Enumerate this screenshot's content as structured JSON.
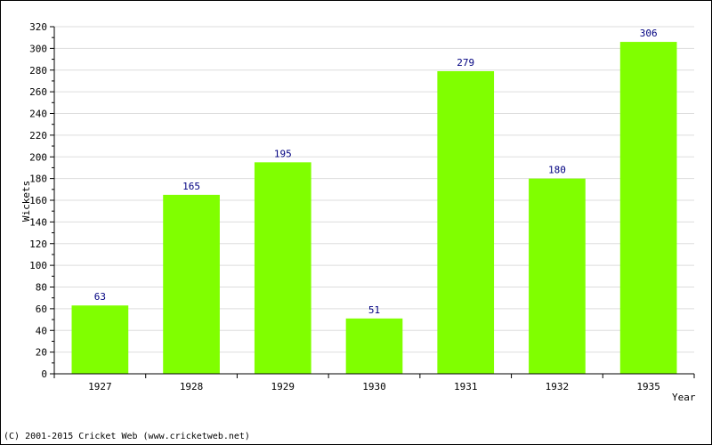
{
  "chart_data": {
    "type": "bar",
    "categories": [
      "1927",
      "1928",
      "1929",
      "1930",
      "1931",
      "1932",
      "1935"
    ],
    "values": [
      63,
      165,
      195,
      51,
      279,
      180,
      306
    ],
    "xlabel": "Year",
    "ylabel": "Wickets",
    "ylim": [
      0,
      320
    ],
    "ytick_step": 20,
    "grid": true,
    "bar_color": "#80FF00",
    "label_color": "#000080",
    "grid_color": "#DDDDDD"
  },
  "footer": {
    "copyright": "(C) 2001-2015 Cricket Web (www.cricketweb.net)"
  }
}
